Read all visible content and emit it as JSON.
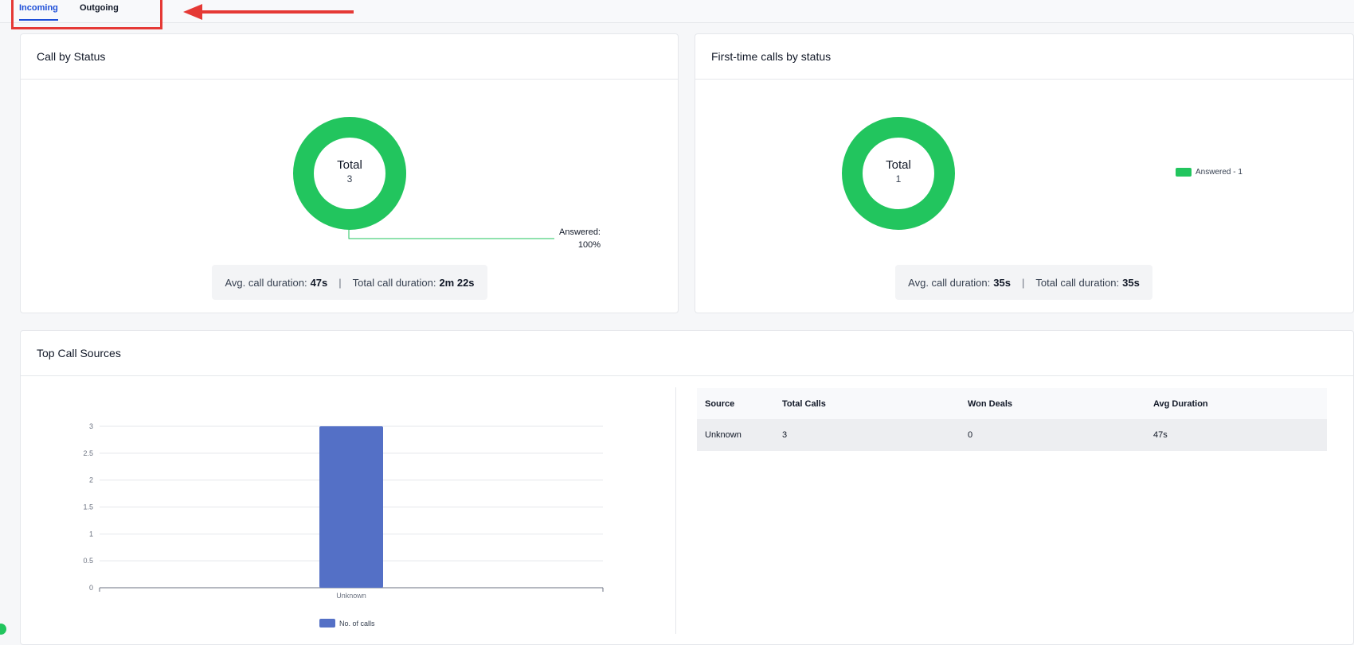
{
  "tabs": [
    {
      "label": "Incoming",
      "active": true
    },
    {
      "label": "Outgoing",
      "active": false
    }
  ],
  "call_by_status": {
    "title": "Call by Status",
    "total_label": "Total",
    "total_value": "3",
    "answered_label_line1": "Answered:",
    "answered_label_line2": "100%",
    "avg_label": "Avg. call duration:",
    "avg_value": "47s",
    "separator": "|",
    "total_duration_label": "Total call duration:",
    "total_duration_value": "2m 22s"
  },
  "first_time_calls": {
    "title": "First-time calls by status",
    "total_label": "Total",
    "total_value": "1",
    "legend_label": "Answered - 1",
    "avg_label": "Avg. call duration:",
    "avg_value": "35s",
    "separator": "|",
    "total_duration_label": "Total call duration:",
    "total_duration_value": "35s"
  },
  "top_call_sources": {
    "title": "Top Call Sources",
    "table": {
      "headers": [
        "Source",
        "Total Calls",
        "Won Deals",
        "Avg Duration"
      ],
      "rows": [
        [
          "Unknown",
          "3",
          "0",
          "47s"
        ]
      ]
    }
  },
  "colors": {
    "donut": "#22c55e",
    "bar": "#5470c6",
    "active_tab": "#1d4ed8",
    "highlight": "#e53935"
  },
  "chart_data": {
    "type": "bar",
    "categories": [
      "Unknown"
    ],
    "series": [
      {
        "name": "No. of calls",
        "values": [
          3
        ]
      }
    ],
    "yticks": [
      "0",
      "0.5",
      "1",
      "1.5",
      "2",
      "2.5",
      "3"
    ],
    "ylim": [
      0,
      3
    ],
    "grid": true,
    "legend": "bottom"
  }
}
